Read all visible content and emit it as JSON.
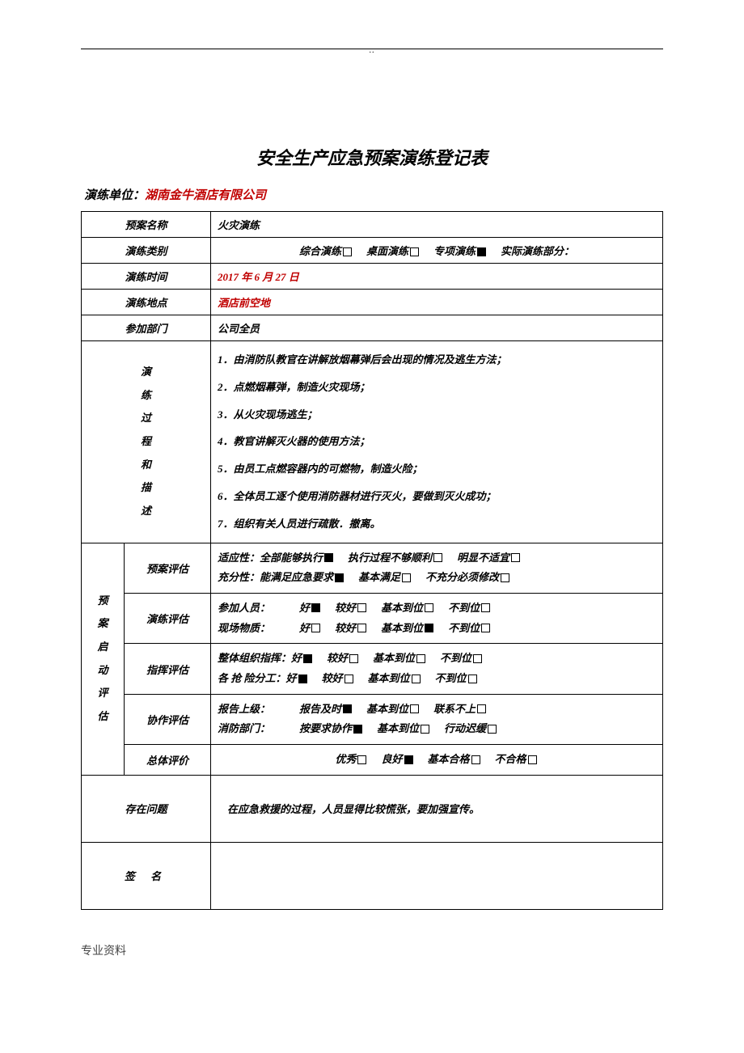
{
  "header_dots": "..",
  "title": "安全生产应急预案演练登记表",
  "unit_label": "演练单位：",
  "unit_value": "湖南金牛酒店有限公司",
  "rows": {
    "plan_name_label": "预案名称",
    "plan_name_value": "火灾演练",
    "drill_type_label": "演练类别",
    "drill_time_label": "演练时间",
    "drill_time_value": "2017 年 6 月 27 日",
    "drill_place_label": "演练地点",
    "drill_place_value": "酒店前空地",
    "dept_label": "参加部门",
    "dept_value": "公司全员"
  },
  "drill_types": [
    {
      "label": "综合演练",
      "checked": false
    },
    {
      "label": "桌面演练",
      "checked": false
    },
    {
      "label": "专项演练",
      "checked": true
    },
    {
      "label": "实际演练部分：",
      "checked": false,
      "trailing": true
    }
  ],
  "process_label_chars": [
    "演",
    "练",
    "过",
    "程",
    "和",
    "描",
    "述"
  ],
  "process_steps": [
    "1．由消防队教官在讲解放烟幕弹后会出现的情况及逃生方法；",
    "2．点燃烟幕弹，制造火灾现场；",
    "3．从火灾现场逃生；",
    "4．教官讲解灭火器的使用方法；",
    "5．由员工点燃容器内的可燃物，制造火险；",
    "6．全体员工逐个使用消防器材进行灭火，要做到灭火成功；",
    "7．组织有关人员进行疏散．撤离。"
  ],
  "eval_label_chars": [
    "预",
    "案",
    "启",
    "动",
    "评",
    "估"
  ],
  "eval": {
    "plan": {
      "label": "预案评估",
      "lines": [
        {
          "prefix": "适应性：",
          "items": [
            {
              "label": "全部能够执行",
              "checked": true
            },
            {
              "label": "执行过程不够顺利",
              "checked": false
            },
            {
              "label": "明显不适宜",
              "checked": false
            }
          ]
        },
        {
          "prefix": "充分性：",
          "items": [
            {
              "label": "能满足应急要求",
              "checked": true
            },
            {
              "label": "基本满足",
              "checked": false
            },
            {
              "label": "不充分必须修改",
              "checked": false
            }
          ]
        }
      ]
    },
    "drill": {
      "label": "演练评估",
      "lines": [
        {
          "prefix": "参加人员：",
          "items": [
            {
              "label": "好",
              "checked": true
            },
            {
              "label": "较好",
              "checked": false
            },
            {
              "label": "基本到位",
              "checked": false
            },
            {
              "label": "不到位",
              "checked": false
            }
          ]
        },
        {
          "prefix": "现场物质：",
          "items": [
            {
              "label": "好",
              "checked": false
            },
            {
              "label": "较好",
              "checked": false
            },
            {
              "label": "基本到位",
              "checked": true
            },
            {
              "label": "不到位",
              "checked": false
            }
          ]
        }
      ]
    },
    "command": {
      "label": "指挥评估",
      "lines": [
        {
          "prefix": "整体组织指挥：",
          "items": [
            {
              "label": "好",
              "checked": true
            },
            {
              "label": "较好",
              "checked": false
            },
            {
              "label": "基本到位",
              "checked": false
            },
            {
              "label": "不到位",
              "checked": false
            }
          ]
        },
        {
          "prefix": "各 抢 险分工：",
          "items": [
            {
              "label": "好",
              "checked": true
            },
            {
              "label": "较好",
              "checked": false
            },
            {
              "label": "基本到位",
              "checked": false
            },
            {
              "label": "不到位",
              "checked": false
            }
          ]
        }
      ]
    },
    "coop": {
      "label": "协作评估",
      "lines": [
        {
          "prefix": "报告上级：",
          "items": [
            {
              "label": "报告及时",
              "checked": true
            },
            {
              "label": "基本到位",
              "checked": false
            },
            {
              "label": "联系不上",
              "checked": false
            }
          ]
        },
        {
          "prefix": "消防部门：",
          "items": [
            {
              "label": "按要求协作",
              "checked": true
            },
            {
              "label": "基本到位",
              "checked": false
            },
            {
              "label": "行动迟缓",
              "checked": false
            }
          ]
        }
      ]
    },
    "overall": {
      "label": "总体评价",
      "items": [
        {
          "label": "优秀",
          "checked": false
        },
        {
          "label": "良好",
          "checked": true
        },
        {
          "label": "基本合格",
          "checked": false
        },
        {
          "label": "不合格",
          "checked": false
        }
      ]
    }
  },
  "issue_label": "存在问题",
  "issue_value": "在应急救援的过程，人员显得比较慌张，要加强宣传。",
  "sign_label": "签 名",
  "footer": "专业资料"
}
